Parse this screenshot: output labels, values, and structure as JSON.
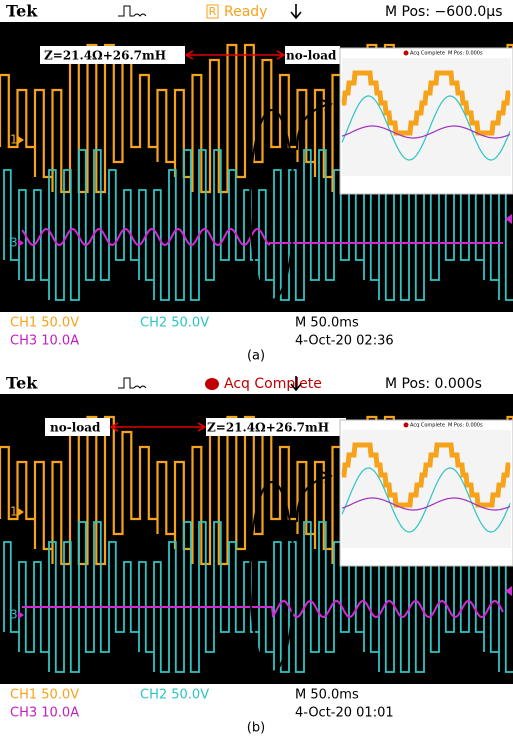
{
  "panels": [
    {
      "header": {
        "brand": "Tek",
        "status_icon": "R",
        "status": "Ready",
        "mpos": "M Pos: −600.0µs"
      },
      "annotation": {
        "left": "Z=21.4Ω+26.7mH",
        "right": "no-load"
      },
      "markers": [
        "1",
        "3"
      ],
      "inset": {
        "status": "Acq Complete",
        "mpos": "M Pos: 0.000s"
      },
      "footer": {
        "ch1": "CH1  50.0V",
        "ch2": "CH2  50.0V",
        "timebase": "M 50.0ms",
        "ch3": "CH3  10.0A",
        "date": "4-Oct-20 02:36"
      },
      "caption": "(a)"
    },
    {
      "header": {
        "status": "Acq Complete",
        "brand": "Tek",
        "mpos": "M Pos: 0.000s"
      },
      "annotation": {
        "left": "no-load",
        "right": "Z=21.4Ω+26.7mH"
      },
      "markers": [
        "1",
        "3"
      ],
      "inset": {
        "status": "Acq Complete",
        "mpos": "M Pos: 0.000s"
      },
      "footer": {
        "ch1": "CH1  50.0V",
        "ch2": "CH2  50.0V",
        "timebase": "M 50.0ms",
        "ch3": "CH3  10.0A",
        "date": "4-Oct-20 01:01"
      },
      "caption": "(b)"
    }
  ]
}
